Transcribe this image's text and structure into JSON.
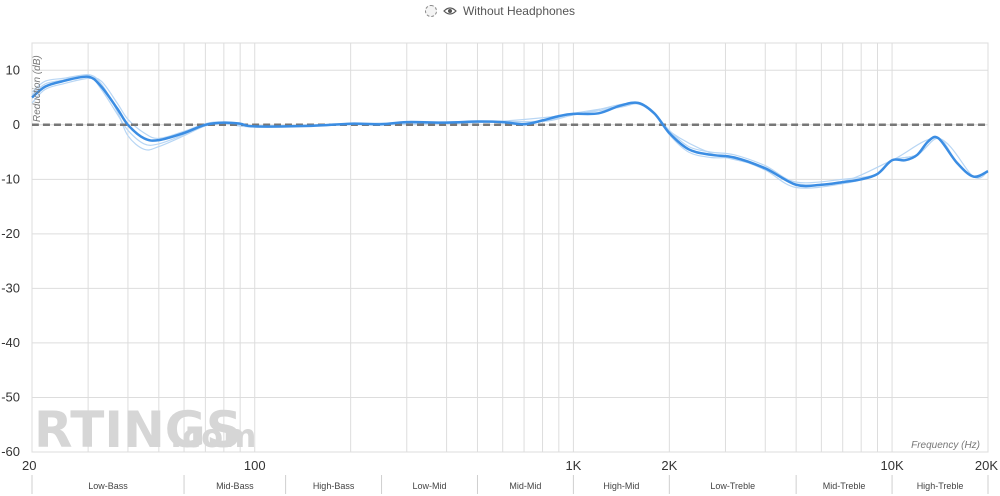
{
  "legend": {
    "toggle_icon": "dashed-circle-icon",
    "visibility_icon": "eye-icon",
    "label": "Without Headphones"
  },
  "watermark": {
    "brand": "RTINGS",
    "suffix": ".com"
  },
  "colors": {
    "main_line": "#3b8de3",
    "faint_line": "#b8d6f4",
    "reference": "#777777",
    "grid": "#dddddd"
  },
  "chart_data": {
    "type": "line",
    "xscale": "log",
    "xlabel": "Frequency (Hz)",
    "ylabel": "Reduction (dB)",
    "xlim": [
      20,
      20000
    ],
    "ylim": [
      -60,
      15
    ],
    "yticks": [
      10,
      0,
      -10,
      -20,
      -30,
      -40,
      -50,
      -60
    ],
    "xticks": [
      {
        "value": 20,
        "label": "20"
      },
      {
        "value": 100,
        "label": "100"
      },
      {
        "value": 1000,
        "label": "1K"
      },
      {
        "value": 2000,
        "label": "2K"
      },
      {
        "value": 10000,
        "label": "10K"
      },
      {
        "value": 20000,
        "label": "20K"
      }
    ],
    "grid": true,
    "bands": [
      {
        "label": "Low-Bass",
        "from": 20,
        "to": 60
      },
      {
        "label": "Mid-Bass",
        "from": 60,
        "to": 125
      },
      {
        "label": "High-Bass",
        "from": 125,
        "to": 250
      },
      {
        "label": "Low-Mid",
        "from": 250,
        "to": 500
      },
      {
        "label": "Mid-Mid",
        "from": 500,
        "to": 1000
      },
      {
        "label": "High-Mid",
        "from": 1000,
        "to": 2000
      },
      {
        "label": "Low-Treble",
        "from": 2000,
        "to": 5000
      },
      {
        "label": "Mid-Treble",
        "from": 5000,
        "to": 10000
      },
      {
        "label": "High-Treble",
        "from": 10000,
        "to": 20000
      }
    ],
    "series": [
      {
        "values": [
          [
            20,
            5
          ],
          [
            22,
            7
          ],
          [
            25,
            8
          ],
          [
            30,
            8.8
          ],
          [
            33,
            7
          ],
          [
            37,
            3
          ],
          [
            40,
            0
          ],
          [
            45,
            -2.5
          ],
          [
            50,
            -2.8
          ],
          [
            60,
            -1.5
          ],
          [
            70,
            0
          ],
          [
            80,
            0.4
          ],
          [
            90,
            0.2
          ],
          [
            100,
            -0.3
          ],
          [
            150,
            -0.2
          ],
          [
            200,
            0.2
          ],
          [
            250,
            0.1
          ],
          [
            300,
            0.5
          ],
          [
            400,
            0.4
          ],
          [
            500,
            0.6
          ],
          [
            600,
            0.5
          ],
          [
            700,
            0.1
          ],
          [
            800,
            0.8
          ],
          [
            900,
            1.6
          ],
          [
            1000,
            2.0
          ],
          [
            1200,
            2.1
          ],
          [
            1400,
            3.5
          ],
          [
            1600,
            4
          ],
          [
            1800,
            2
          ],
          [
            2000,
            -1.5
          ],
          [
            2300,
            -4.5
          ],
          [
            2700,
            -5.5
          ],
          [
            3200,
            -6
          ],
          [
            4000,
            -8
          ],
          [
            5000,
            -11
          ],
          [
            6000,
            -11
          ],
          [
            7000,
            -10.5
          ],
          [
            8000,
            -10
          ],
          [
            9000,
            -9
          ],
          [
            10000,
            -6.5
          ],
          [
            11000,
            -6.5
          ],
          [
            12000,
            -5.5
          ],
          [
            13000,
            -3
          ],
          [
            14000,
            -2.5
          ],
          [
            16000,
            -7
          ],
          [
            18000,
            -9.5
          ],
          [
            20000,
            -8.5
          ]
        ]
      },
      {
        "values": [
          [
            20,
            6
          ],
          [
            22,
            8
          ],
          [
            25,
            8.5
          ],
          [
            30,
            9
          ],
          [
            33,
            6.5
          ],
          [
            37,
            2
          ],
          [
            40,
            -1
          ],
          [
            45,
            -3.5
          ],
          [
            50,
            -3.5
          ],
          [
            60,
            -1.8
          ],
          [
            70,
            0
          ],
          [
            80,
            0.3
          ],
          [
            100,
            -0.2
          ],
          [
            200,
            0.1
          ],
          [
            500,
            0.5
          ],
          [
            800,
            0.6
          ],
          [
            1000,
            1.8
          ],
          [
            1400,
            3.2
          ],
          [
            1600,
            3.8
          ],
          [
            1800,
            2
          ],
          [
            2000,
            -1
          ],
          [
            2300,
            -4
          ],
          [
            2700,
            -5
          ],
          [
            3200,
            -5.5
          ],
          [
            4000,
            -7.5
          ],
          [
            5000,
            -10.5
          ],
          [
            7000,
            -10
          ],
          [
            9000,
            -9
          ],
          [
            10000,
            -6.5
          ],
          [
            12000,
            -5.5
          ],
          [
            14000,
            -2.5
          ],
          [
            16000,
            -7
          ],
          [
            18000,
            -9.5
          ],
          [
            20000,
            -8.5
          ]
        ]
      },
      {
        "values": [
          [
            20,
            4
          ],
          [
            22,
            6.5
          ],
          [
            25,
            7.5
          ],
          [
            30,
            8.5
          ],
          [
            33,
            8
          ],
          [
            37,
            4
          ],
          [
            40,
            1
          ],
          [
            45,
            -1.5
          ],
          [
            50,
            -2.5
          ],
          [
            60,
            -1.2
          ],
          [
            70,
            0.2
          ],
          [
            80,
            0.5
          ],
          [
            100,
            -0.3
          ],
          [
            200,
            0.2
          ],
          [
            500,
            0.6
          ],
          [
            800,
            0.7
          ],
          [
            1000,
            2.1
          ],
          [
            1400,
            3.4
          ],
          [
            1600,
            4
          ],
          [
            1800,
            2.2
          ],
          [
            2000,
            -1.8
          ],
          [
            2300,
            -5
          ],
          [
            2700,
            -6
          ],
          [
            3200,
            -6.2
          ],
          [
            4000,
            -8.3
          ],
          [
            5000,
            -11.5
          ],
          [
            7000,
            -10.8
          ],
          [
            9000,
            -9
          ],
          [
            10000,
            -6.5
          ],
          [
            12000,
            -5.5
          ],
          [
            14000,
            -2.5
          ],
          [
            16000,
            -7
          ],
          [
            18000,
            -9.5
          ],
          [
            20000,
            -8.5
          ]
        ]
      },
      {
        "values": [
          [
            20,
            5.5
          ],
          [
            22,
            7.5
          ],
          [
            25,
            8.2
          ],
          [
            30,
            9.2
          ],
          [
            33,
            7.5
          ],
          [
            37,
            2.5
          ],
          [
            40,
            -2
          ],
          [
            45,
            -4.5
          ],
          [
            50,
            -4
          ],
          [
            60,
            -2
          ],
          [
            70,
            -0.2
          ],
          [
            80,
            0.2
          ],
          [
            100,
            -0.4
          ],
          [
            200,
            0
          ],
          [
            500,
            0.4
          ],
          [
            1000,
            1.9
          ],
          [
            1600,
            3.9
          ],
          [
            2000,
            -1.2
          ],
          [
            2700,
            -5.2
          ],
          [
            4000,
            -7.8
          ],
          [
            5000,
            -10.8
          ],
          [
            7000,
            -10.4
          ],
          [
            10000,
            -6.5
          ],
          [
            14000,
            -2.5
          ],
          [
            18000,
            -9.5
          ],
          [
            20000,
            -8.5
          ]
        ]
      },
      {
        "values": [
          [
            20,
            0
          ],
          [
            30,
            0
          ],
          [
            50,
            0
          ],
          [
            100,
            0
          ],
          [
            200,
            0
          ],
          [
            500,
            0
          ],
          [
            1000,
            0
          ],
          [
            2000,
            0
          ],
          [
            5000,
            0
          ],
          [
            10000,
            0
          ],
          [
            20000,
            0
          ]
        ]
      }
    ]
  }
}
